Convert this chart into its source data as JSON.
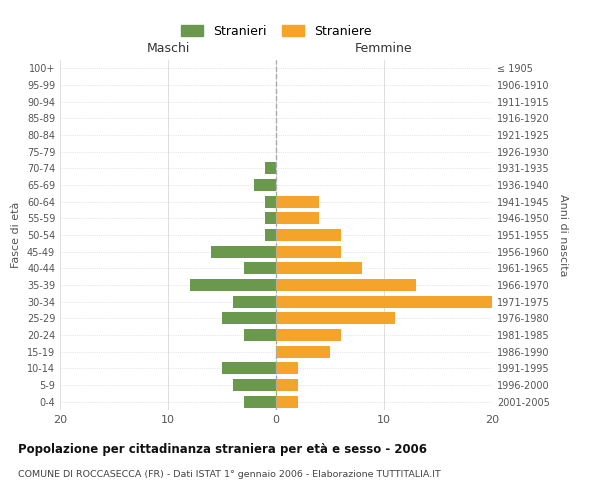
{
  "age_groups": [
    "100+",
    "95-99",
    "90-94",
    "85-89",
    "80-84",
    "75-79",
    "70-74",
    "65-69",
    "60-64",
    "55-59",
    "50-54",
    "45-49",
    "40-44",
    "35-39",
    "30-34",
    "25-29",
    "20-24",
    "15-19",
    "10-14",
    "5-9",
    "0-4"
  ],
  "birth_years": [
    "≤ 1905",
    "1906-1910",
    "1911-1915",
    "1916-1920",
    "1921-1925",
    "1926-1930",
    "1931-1935",
    "1936-1940",
    "1941-1945",
    "1946-1950",
    "1951-1955",
    "1956-1960",
    "1961-1965",
    "1966-1970",
    "1971-1975",
    "1976-1980",
    "1981-1985",
    "1986-1990",
    "1991-1995",
    "1996-2000",
    "2001-2005"
  ],
  "males": [
    0,
    0,
    0,
    0,
    0,
    0,
    1,
    2,
    1,
    1,
    1,
    6,
    3,
    8,
    4,
    5,
    3,
    0,
    5,
    4,
    3
  ],
  "females": [
    0,
    0,
    0,
    0,
    0,
    0,
    0,
    0,
    4,
    4,
    6,
    6,
    8,
    13,
    20,
    11,
    6,
    5,
    2,
    2,
    2
  ],
  "male_color": "#6a994e",
  "female_color": "#f4a42a",
  "title": "Popolazione per cittadinanza straniera per età e sesso - 2006",
  "subtitle": "COMUNE DI ROCCASECCA (FR) - Dati ISTAT 1° gennaio 2006 - Elaborazione TUTTITALIA.IT",
  "xlabel_left": "Maschi",
  "xlabel_right": "Femmine",
  "ylabel_left": "Fasce di età",
  "ylabel_right": "Anni di nascita",
  "legend_male": "Stranieri",
  "legend_female": "Straniere",
  "xlim": 20,
  "background_color": "#ffffff",
  "grid_color": "#d0d0d0",
  "center_line_color": "#aaaaaa",
  "tick_label_color": "#555555"
}
